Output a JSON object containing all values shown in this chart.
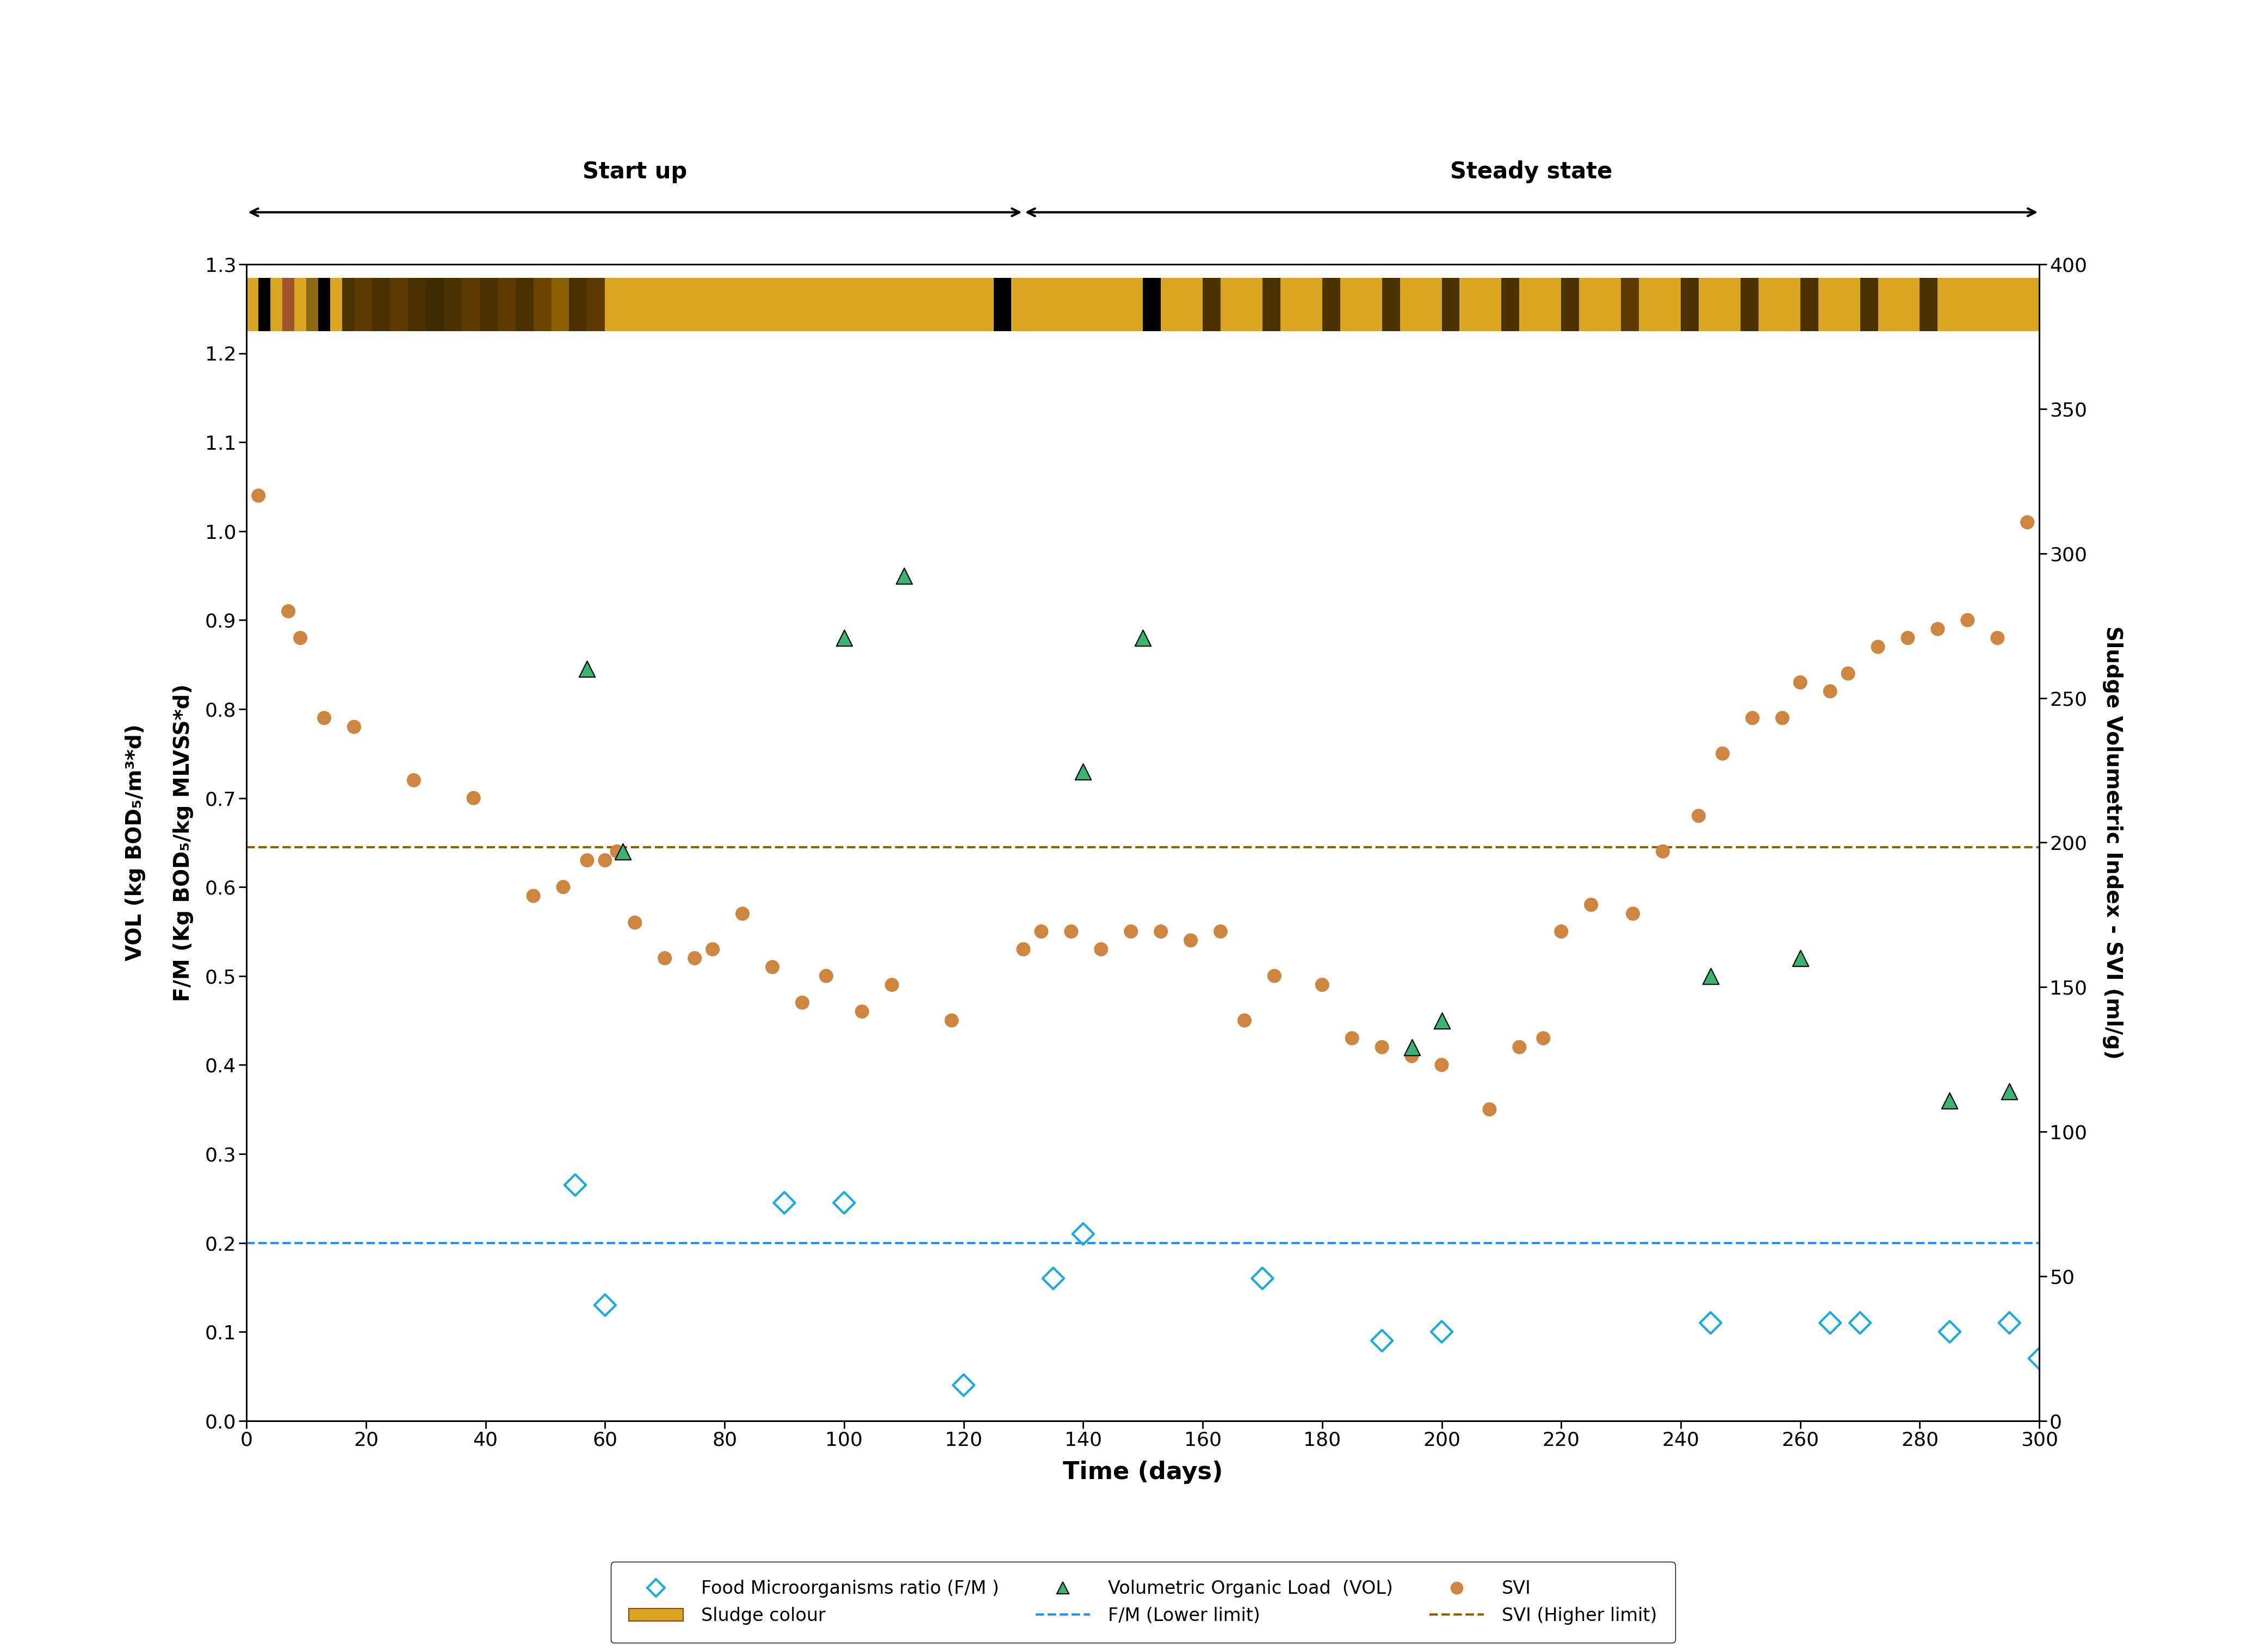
{
  "fm_x": [
    55,
    60,
    90,
    100,
    120,
    135,
    140,
    170,
    190,
    200,
    245,
    265,
    270,
    285,
    295,
    300
  ],
  "fm_y": [
    0.265,
    0.13,
    0.245,
    0.245,
    0.04,
    0.16,
    0.21,
    0.16,
    0.09,
    0.1,
    0.11,
    0.11,
    0.11,
    0.1,
    0.11,
    0.07
  ],
  "vol_x": [
    57,
    63,
    100,
    110,
    140,
    150,
    195,
    200,
    245,
    260,
    285,
    295
  ],
  "vol_y": [
    0.845,
    0.64,
    0.88,
    0.95,
    0.73,
    0.88,
    0.42,
    0.45,
    0.5,
    0.52,
    0.36,
    0.37
  ],
  "svi_x": [
    2,
    7,
    9,
    13,
    18,
    28,
    38,
    48,
    53,
    57,
    60,
    62,
    65,
    70,
    75,
    78,
    83,
    88,
    93,
    97,
    103,
    108,
    118,
    130,
    133,
    138,
    143,
    148,
    153,
    158,
    163,
    167,
    172,
    180,
    185,
    190,
    195,
    200,
    208,
    213,
    217,
    220,
    225,
    232,
    237,
    243,
    247,
    252,
    257,
    260,
    265,
    268,
    273,
    278,
    283,
    288,
    293,
    298
  ],
  "svi_y": [
    1.04,
    0.91,
    0.88,
    0.79,
    0.78,
    0.72,
    0.7,
    0.59,
    0.6,
    0.63,
    0.63,
    0.64,
    0.56,
    0.52,
    0.52,
    0.53,
    0.57,
    0.51,
    0.47,
    0.5,
    0.46,
    0.49,
    0.45,
    0.53,
    0.55,
    0.55,
    0.53,
    0.55,
    0.55,
    0.54,
    0.55,
    0.45,
    0.5,
    0.49,
    0.43,
    0.42,
    0.41,
    0.4,
    0.35,
    0.42,
    0.43,
    0.55,
    0.58,
    0.57,
    0.64,
    0.68,
    0.75,
    0.79,
    0.79,
    0.83,
    0.82,
    0.84,
    0.87,
    0.88,
    0.89,
    0.9,
    0.88,
    1.01
  ],
  "fm_lower_limit": 0.2,
  "svi_higher_limit": 0.645,
  "xlim": [
    0,
    300
  ],
  "ylim_left": [
    0,
    1.3
  ],
  "ylim_right": [
    0,
    400
  ],
  "xlabel": "Time (days)",
  "ylabel_left": "VOL (kg BOD₅/m³*d)\n\nF/M (Kg BOD₅/kg MLVSS*d)",
  "ylabel_right": "Sludge Volumetric Index - SVI (ml/g)",
  "fm_color": "#1EAADC",
  "vol_color": "#3CB371",
  "svi_color": "#CD853F",
  "fm_dashed_color": "#1E90FF",
  "svi_dashed_color": "#8B6400",
  "startup_label": "Start up",
  "steady_label": "Steady state",
  "startup_end_x": 130,
  "sludge_segments": [
    [
      0,
      2,
      "#DAA520"
    ],
    [
      2,
      4,
      "#000000"
    ],
    [
      4,
      6,
      "#DAA520"
    ],
    [
      6,
      8,
      "#A0522D"
    ],
    [
      8,
      10,
      "#DAA520"
    ],
    [
      10,
      12,
      "#8B6914"
    ],
    [
      12,
      14,
      "#000000"
    ],
    [
      14,
      16,
      "#DAA520"
    ],
    [
      16,
      18,
      "#4B3000"
    ],
    [
      18,
      21,
      "#5C3A00"
    ],
    [
      21,
      24,
      "#4B3000"
    ],
    [
      24,
      27,
      "#5C3A00"
    ],
    [
      27,
      30,
      "#4B3000"
    ],
    [
      30,
      33,
      "#3D2B00"
    ],
    [
      33,
      36,
      "#4B3000"
    ],
    [
      36,
      39,
      "#5C3A00"
    ],
    [
      39,
      42,
      "#4B3000"
    ],
    [
      42,
      45,
      "#5C3A00"
    ],
    [
      45,
      48,
      "#4B3000"
    ],
    [
      48,
      51,
      "#6B4200"
    ],
    [
      51,
      54,
      "#8B6000"
    ],
    [
      54,
      57,
      "#4B3000"
    ],
    [
      57,
      60,
      "#5C3A00"
    ],
    [
      60,
      70,
      "#DAA520"
    ],
    [
      70,
      80,
      "#DAA520"
    ],
    [
      80,
      90,
      "#DAA520"
    ],
    [
      90,
      100,
      "#DAA520"
    ],
    [
      100,
      110,
      "#DAA520"
    ],
    [
      110,
      120,
      "#DAA520"
    ],
    [
      120,
      125,
      "#DAA520"
    ],
    [
      125,
      128,
      "#000000"
    ],
    [
      128,
      135,
      "#DAA520"
    ],
    [
      135,
      145,
      "#DAA520"
    ],
    [
      145,
      150,
      "#DAA520"
    ],
    [
      150,
      153,
      "#000000"
    ],
    [
      153,
      160,
      "#DAA520"
    ],
    [
      160,
      163,
      "#4B3000"
    ],
    [
      163,
      170,
      "#DAA520"
    ],
    [
      170,
      173,
      "#4B3000"
    ],
    [
      173,
      180,
      "#DAA520"
    ],
    [
      180,
      183,
      "#4B3000"
    ],
    [
      183,
      190,
      "#DAA520"
    ],
    [
      190,
      193,
      "#4B3000"
    ],
    [
      193,
      200,
      "#DAA520"
    ],
    [
      200,
      203,
      "#4B3000"
    ],
    [
      203,
      210,
      "#DAA520"
    ],
    [
      210,
      213,
      "#4B3000"
    ],
    [
      213,
      220,
      "#DAA520"
    ],
    [
      220,
      223,
      "#4B3000"
    ],
    [
      223,
      230,
      "#DAA520"
    ],
    [
      230,
      233,
      "#5C3A00"
    ],
    [
      233,
      240,
      "#DAA520"
    ],
    [
      240,
      243,
      "#4B3000"
    ],
    [
      243,
      250,
      "#DAA520"
    ],
    [
      250,
      253,
      "#4B3000"
    ],
    [
      253,
      260,
      "#DAA520"
    ],
    [
      260,
      263,
      "#4B3000"
    ],
    [
      263,
      270,
      "#DAA520"
    ],
    [
      270,
      273,
      "#4B3000"
    ],
    [
      273,
      280,
      "#DAA520"
    ],
    [
      280,
      283,
      "#4B3000"
    ],
    [
      283,
      290,
      "#DAA520"
    ],
    [
      290,
      295,
      "#DAA520"
    ],
    [
      295,
      300,
      "#DAA520"
    ]
  ]
}
